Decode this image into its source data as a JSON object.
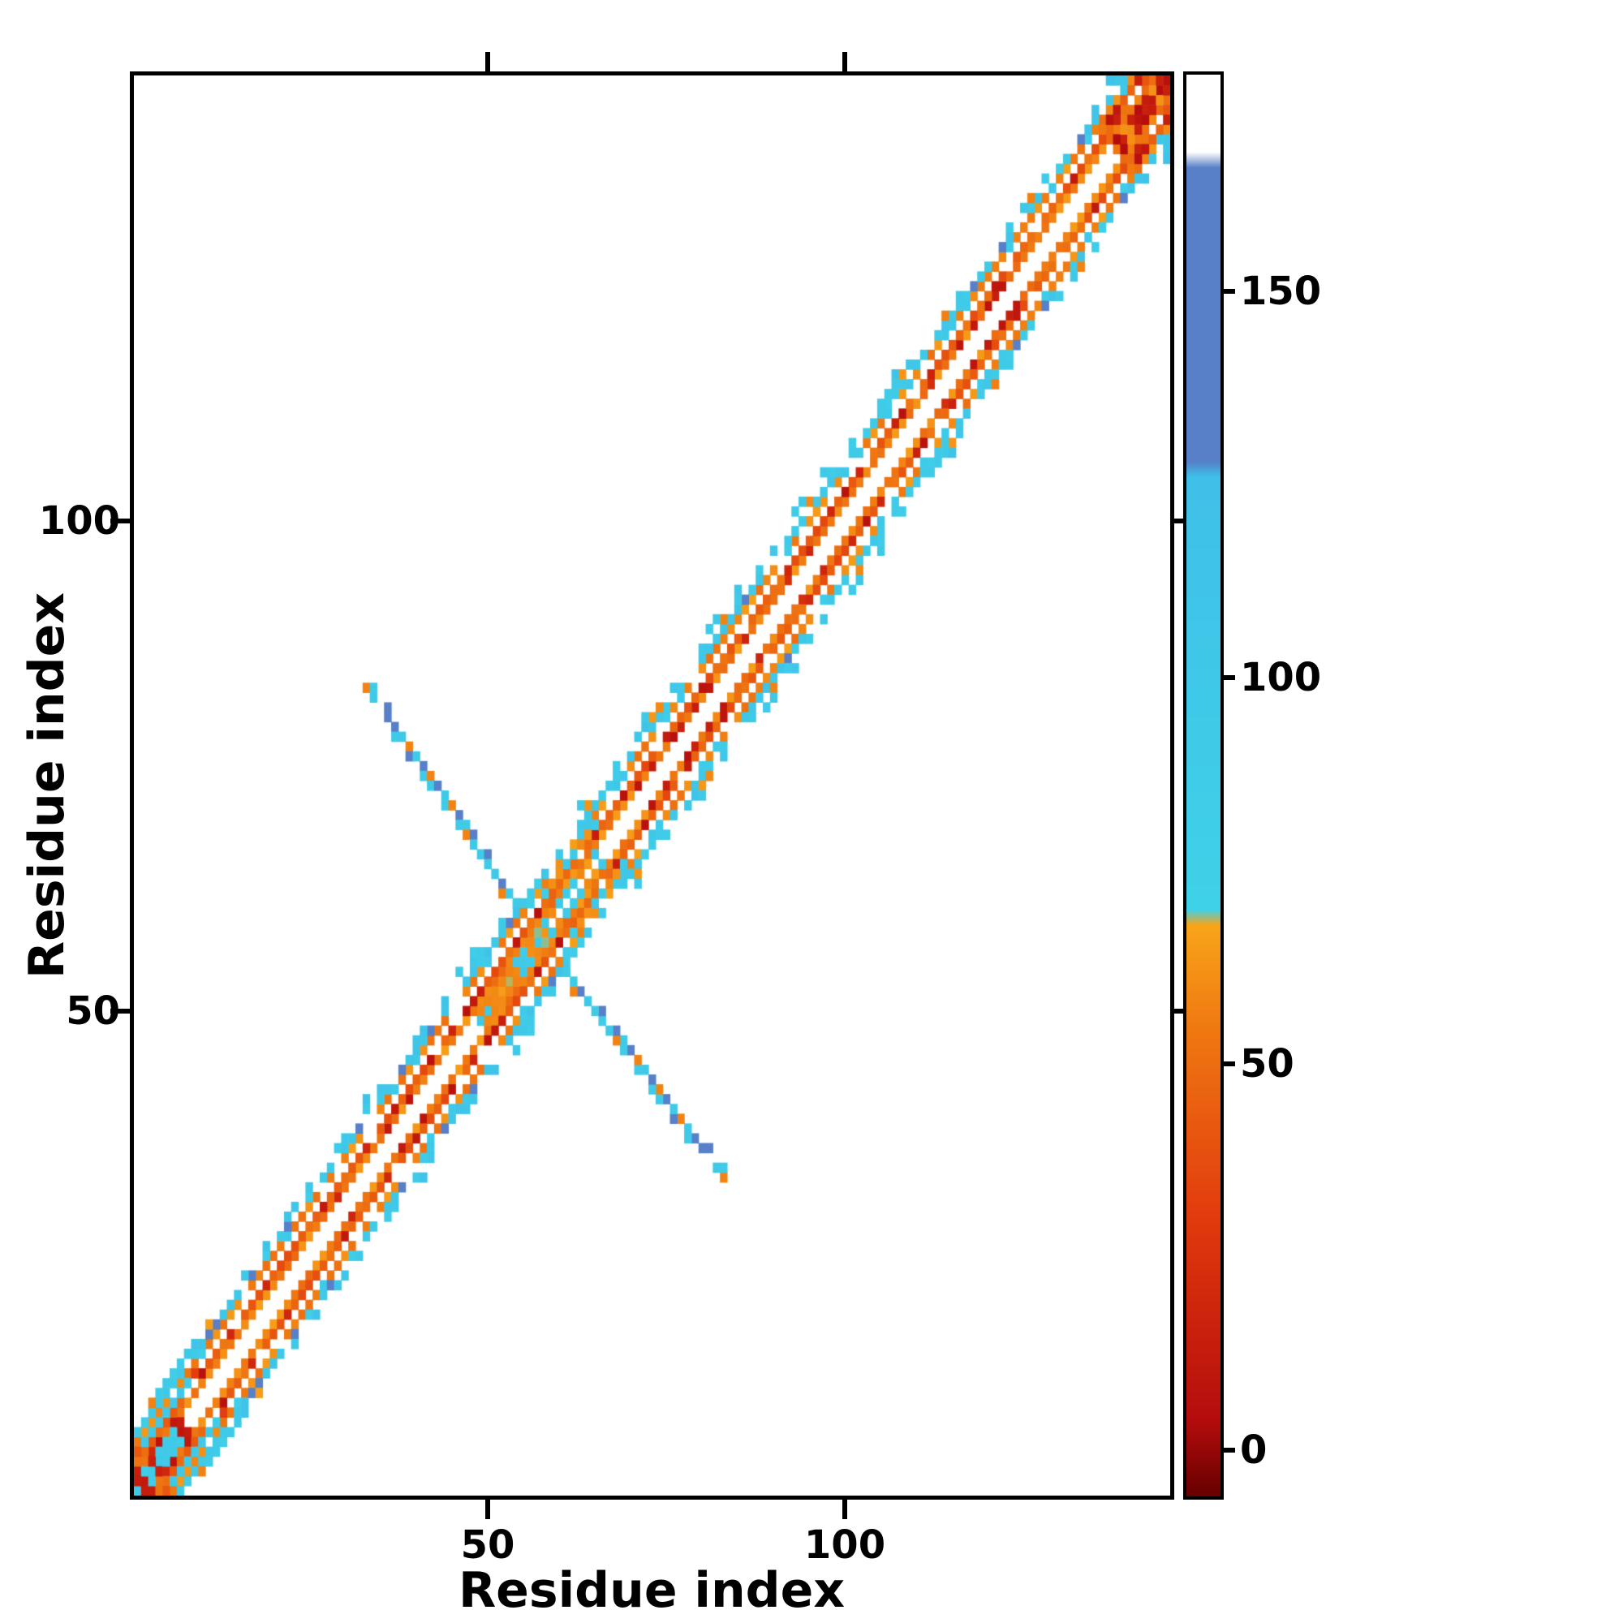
{
  "figure": {
    "background": "#ffffff",
    "frame_color": "#000000"
  },
  "chart_data": {
    "type": "heatmap",
    "title": "",
    "xlabel": "Residue index",
    "ylabel": "Residue index",
    "x_range": [
      0.5,
      145.5
    ],
    "y_range": [
      0.5,
      145.5
    ],
    "x_ticks": [
      50,
      100
    ],
    "y_ticks": [
      50,
      100
    ],
    "x_tick_labels": [
      "50",
      "100"
    ],
    "y_tick_labels": [
      "50",
      "100"
    ],
    "grid": false,
    "legend": "none",
    "colorbar": {
      "position": "right",
      "ticks": [
        0,
        50,
        100,
        150
      ],
      "tick_labels": [
        "0",
        "50",
        "100",
        "150"
      ],
      "vmin": -6,
      "vmax": 178,
      "stops": [
        [
          -6,
          "#670000"
        ],
        [
          4,
          "#b50d0d"
        ],
        [
          30,
          "#e23b0e"
        ],
        [
          55,
          "#f07a12"
        ],
        [
          68,
          "#f9a51a"
        ],
        [
          70,
          "#3fd2e8"
        ],
        [
          126,
          "#3fc0e8"
        ],
        [
          128,
          "#5780c8"
        ],
        [
          166,
          "#5780c8"
        ],
        [
          168,
          "#ffffff"
        ],
        [
          178,
          "#ffffff"
        ]
      ]
    },
    "matrix": {
      "n": 145,
      "symmetric": true,
      "diagonal_bands": [
        {
          "offset": 2,
          "coverage": 1.0,
          "values": {
            "main": [
              48,
              66
            ],
            "alt": [
              6,
              24
            ],
            "alt_prob": 0.16
          }
        },
        {
          "offset": 3,
          "coverage": 0.92,
          "values": {
            "main": [
              34,
              54
            ],
            "alt": [
              6,
              20
            ],
            "alt_prob": 0.22
          }
        },
        {
          "offset": 5,
          "coverage": 0.88,
          "values": {
            "main": [
              50,
              66
            ],
            "alt": [
              84,
              104
            ],
            "alt_prob": 0.18
          }
        },
        {
          "offset": 6,
          "coverage": 0.72,
          "values": {
            "main": [
              82,
              112
            ],
            "alt": [
              142,
              158
            ],
            "alt_prob": 0.1
          }
        },
        {
          "offset": 7,
          "coverage": 0.38,
          "values": {
            "main": [
              84,
              114
            ],
            "alt": [
              56,
              66
            ],
            "alt_prob": 0.12
          }
        },
        {
          "offset": 8,
          "coverage": 0.12,
          "values": {
            "main": [
              86,
              116
            ],
            "alt": [
              86,
              116
            ],
            "alt_prob": 0.0
          }
        }
      ],
      "diagonal_segments": [
        {
          "from": 1,
          "to": 7,
          "offsets": [
            0,
            1
          ],
          "values": {
            "main": [
              2,
              16
            ],
            "alt": [
              84,
              100
            ],
            "alt_prob": 0.38
          }
        },
        {
          "from": 1,
          "to": 9,
          "offsets": [
            4
          ],
          "values": {
            "main": [
              86,
              104
            ],
            "alt": [
              30,
              44
            ],
            "alt_prob": 0.3
          }
        },
        {
          "from": 49,
          "to": 58,
          "offsets": [
            0,
            1
          ],
          "values": {
            "main": [
              58,
              70
            ],
            "alt": [
              84,
              102
            ],
            "alt_prob": 0.28
          }
        },
        {
          "from": 58,
          "to": 65,
          "offsets": [
            1,
            4
          ],
          "values": {
            "main": [
              84,
              106
            ],
            "alt": [
              56,
              66
            ],
            "alt_prob": 0.3
          }
        },
        {
          "from": 138,
          "to": 145,
          "offsets": [
            0,
            1
          ],
          "values": {
            "main": [
              2,
              18
            ],
            "alt": [
              48,
              64
            ],
            "alt_prob": 0.42
          }
        },
        {
          "from": 136,
          "to": 144,
          "offsets": [
            4
          ],
          "values": {
            "main": [
              40,
              58
            ],
            "alt": [
              6,
              18
            ],
            "alt_prob": 0.4
          }
        }
      ],
      "hairpin_contacts": [
        [
          33,
          83,
          58
        ],
        [
          34,
          83,
          90
        ],
        [
          34,
          82,
          95
        ],
        [
          36,
          81,
          148
        ],
        [
          36,
          80,
          150
        ],
        [
          37,
          79,
          148
        ],
        [
          37,
          78,
          92
        ],
        [
          38,
          78,
          95
        ],
        [
          39,
          77,
          58
        ],
        [
          39,
          76,
          148
        ],
        [
          40,
          76,
          90
        ],
        [
          41,
          75,
          150
        ],
        [
          41,
          74,
          92
        ],
        [
          42,
          74,
          58
        ],
        [
          42,
          73,
          90
        ],
        [
          43,
          73,
          148
        ],
        [
          44,
          72,
          95
        ],
        [
          44,
          71,
          90
        ],
        [
          45,
          71,
          58
        ],
        [
          46,
          70,
          150
        ],
        [
          46,
          69,
          92
        ],
        [
          47,
          69,
          90
        ],
        [
          47,
          68,
          58
        ],
        [
          48,
          68,
          148
        ],
        [
          48,
          67,
          95
        ],
        [
          49,
          66,
          90
        ],
        [
          50,
          66,
          148
        ],
        [
          50,
          65,
          92
        ],
        [
          51,
          64,
          95
        ],
        [
          52,
          63,
          148
        ],
        [
          52,
          62,
          58
        ],
        [
          53,
          62,
          90
        ],
        [
          54,
          61,
          92
        ],
        [
          55,
          60,
          58
        ]
      ]
    }
  }
}
